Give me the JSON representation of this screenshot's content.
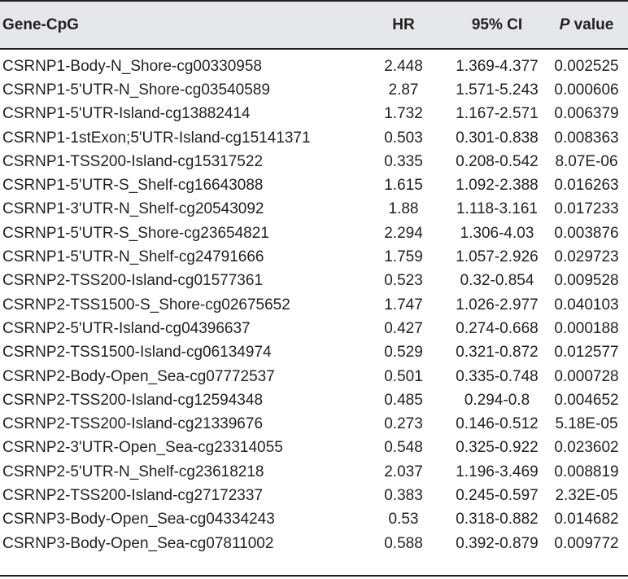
{
  "table": {
    "headers": {
      "gene": "Gene-CpG",
      "hr": "HR",
      "ci": "95% CI",
      "p_italic": "P",
      "p_rest": " value"
    },
    "rows": [
      {
        "gene": "CSRNP1-Body-N_Shore-cg00330958",
        "hr": "2.448",
        "ci": "1.369-4.377",
        "p": "0.002525"
      },
      {
        "gene": "CSRNP1-5'UTR-N_Shore-cg03540589",
        "hr": "2.87",
        "ci": "1.571-5.243",
        "p": "0.000606"
      },
      {
        "gene": "CSRNP1-5'UTR-Island-cg13882414",
        "hr": "1.732",
        "ci": "1.167-2.571",
        "p": "0.006379"
      },
      {
        "gene": "CSRNP1-1stExon;5'UTR-Island-cg15141371",
        "hr": "0.503",
        "ci": "0.301-0.838",
        "p": "0.008363"
      },
      {
        "gene": "CSRNP1-TSS200-Island-cg15317522",
        "hr": "0.335",
        "ci": "0.208-0.542",
        "p": "8.07E-06"
      },
      {
        "gene": "CSRNP1-5'UTR-S_Shelf-cg16643088",
        "hr": "1.615",
        "ci": "1.092-2.388",
        "p": "0.016263"
      },
      {
        "gene": "CSRNP1-3'UTR-N_Shelf-cg20543092",
        "hr": "1.88",
        "ci": "1.118-3.161",
        "p": "0.017233"
      },
      {
        "gene": "CSRNP1-5'UTR-S_Shore-cg23654821",
        "hr": "2.294",
        "ci": "1.306-4.03",
        "p": "0.003876"
      },
      {
        "gene": "CSRNP1-5'UTR-N_Shelf-cg24791666",
        "hr": "1.759",
        "ci": "1.057-2.926",
        "p": "0.029723"
      },
      {
        "gene": "CSRNP2-TSS200-Island-cg01577361",
        "hr": "0.523",
        "ci": "0.32-0.854",
        "p": "0.009528"
      },
      {
        "gene": "CSRNP2-TSS1500-S_Shore-cg02675652",
        "hr": "1.747",
        "ci": "1.026-2.977",
        "p": "0.040103"
      },
      {
        "gene": "CSRNP2-5'UTR-Island-cg04396637",
        "hr": "0.427",
        "ci": "0.274-0.668",
        "p": "0.000188"
      },
      {
        "gene": "CSRNP2-TSS1500-Island-cg06134974",
        "hr": "0.529",
        "ci": "0.321-0.872",
        "p": "0.012577"
      },
      {
        "gene": "CSRNP2-Body-Open_Sea-cg07772537",
        "hr": "0.501",
        "ci": "0.335-0.748",
        "p": "0.000728"
      },
      {
        "gene": "CSRNP2-TSS200-Island-cg12594348",
        "hr": "0.485",
        "ci": "0.294-0.8",
        "p": "0.004652"
      },
      {
        "gene": "CSRNP2-TSS200-Island-cg21339676",
        "hr": "0.273",
        "ci": "0.146-0.512",
        "p": "5.18E-05"
      },
      {
        "gene": "CSRNP2-3'UTR-Open_Sea-cg23314055",
        "hr": "0.548",
        "ci": "0.325-0.922",
        "p": "0.023602"
      },
      {
        "gene": "CSRNP2-5'UTR-N_Shelf-cg23618218",
        "hr": "2.037",
        "ci": "1.196-3.469",
        "p": "0.008819"
      },
      {
        "gene": "CSRNP2-TSS200-Island-cg27172337",
        "hr": "0.383",
        "ci": "0.245-0.597",
        "p": "2.32E-05"
      },
      {
        "gene": "CSRNP3-Body-Open_Sea-cg04334243",
        "hr": "0.53",
        "ci": "0.318-0.882",
        "p": "0.014682"
      },
      {
        "gene": "CSRNP3-Body-Open_Sea-cg07811002",
        "hr": "0.588",
        "ci": "0.392-0.879",
        "p": "0.009772"
      }
    ]
  },
  "colors": {
    "header_background": "#e6e7e8",
    "text": "#231f20",
    "rule": "#231f20"
  }
}
